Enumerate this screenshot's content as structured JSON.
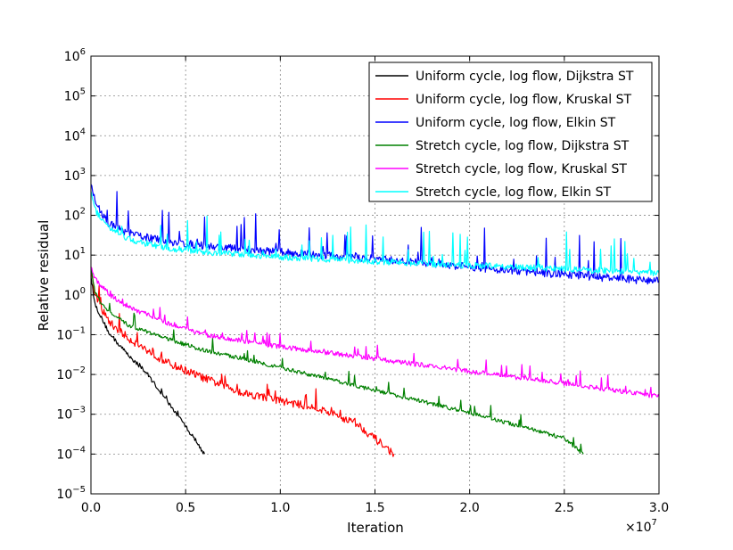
{
  "chart_data": {
    "type": "line",
    "xlabel": "Iteration",
    "ylabel": "Relative residual",
    "x_scale_factor": "×10",
    "x_scale_exponent": "7",
    "xlim": [
      0,
      3.0
    ],
    "ylim_exponent": [
      -5,
      6
    ],
    "yscale": "log",
    "grid": true,
    "legend_position": "top-right",
    "x_ticks": [
      "0.0",
      "0.5",
      "1.0",
      "1.5",
      "2.0",
      "2.5",
      "3.0"
    ],
    "y_ticks": [
      {
        "base": "10",
        "exp": "6"
      },
      {
        "base": "10",
        "exp": "5"
      },
      {
        "base": "10",
        "exp": "4"
      },
      {
        "base": "10",
        "exp": "3"
      },
      {
        "base": "10",
        "exp": "2"
      },
      {
        "base": "10",
        "exp": "1"
      },
      {
        "base": "10",
        "exp": "0"
      },
      {
        "base": "10",
        "exp": "−1"
      },
      {
        "base": "10",
        "exp": "−2"
      },
      {
        "base": "10",
        "exp": "−3"
      },
      {
        "base": "10",
        "exp": "−4"
      },
      {
        "base": "10",
        "exp": "−5"
      }
    ],
    "series": [
      {
        "name": "Uniform cycle, log flow, Dijkstra ST",
        "color": "#000000",
        "noise": 0.05,
        "spikes": 0.1,
        "points": [
          [
            0,
            3.0
          ],
          [
            0.02,
            0.6
          ],
          [
            0.05,
            0.3
          ],
          [
            0.1,
            0.1
          ],
          [
            0.2,
            0.03
          ],
          [
            0.3,
            0.01
          ],
          [
            0.4,
            0.0022
          ],
          [
            0.5,
            0.0005
          ],
          [
            0.6,
            0.0001
          ]
        ]
      },
      {
        "name": "Uniform cycle, log flow, Kruskal ST",
        "color": "#ff0000",
        "noise": 0.1,
        "spikes": 0.5,
        "points": [
          [
            0,
            5.0
          ],
          [
            0.02,
            1.0
          ],
          [
            0.05,
            0.5
          ],
          [
            0.1,
            0.2
          ],
          [
            0.2,
            0.08
          ],
          [
            0.4,
            0.02
          ],
          [
            0.6,
            0.008
          ],
          [
            0.8,
            0.0035
          ],
          [
            1.0,
            0.0022
          ],
          [
            1.2,
            0.0014
          ],
          [
            1.4,
            0.0006
          ],
          [
            1.6,
            0.0001
          ]
        ]
      },
      {
        "name": "Uniform cycle, log flow, Elkin ST",
        "color": "#0000ff",
        "noise": 0.1,
        "spikes": 1.0,
        "points": [
          [
            0,
            600
          ],
          [
            0.03,
            150
          ],
          [
            0.1,
            60
          ],
          [
            0.2,
            35
          ],
          [
            0.4,
            22
          ],
          [
            0.6,
            17
          ],
          [
            0.8,
            14
          ],
          [
            1.0,
            12
          ],
          [
            1.5,
            8
          ],
          [
            2.0,
            5
          ],
          [
            2.5,
            3.2
          ],
          [
            3.0,
            2.2
          ]
        ]
      },
      {
        "name": "Stretch cycle, log flow, Dijkstra ST",
        "color": "#008000",
        "noise": 0.05,
        "spikes": 0.35,
        "points": [
          [
            0,
            5.0
          ],
          [
            0.02,
            1.2
          ],
          [
            0.05,
            0.7
          ],
          [
            0.1,
            0.35
          ],
          [
            0.2,
            0.17
          ],
          [
            0.4,
            0.08
          ],
          [
            0.6,
            0.04
          ],
          [
            0.8,
            0.025
          ],
          [
            1.0,
            0.015
          ],
          [
            1.5,
            0.004
          ],
          [
            2.0,
            0.0011
          ],
          [
            2.5,
            0.00025
          ],
          [
            2.6,
            0.0001
          ]
        ]
      },
      {
        "name": "Stretch cycle, log flow, Kruskal ST",
        "color": "#ff00ff",
        "noise": 0.06,
        "spikes": 0.35,
        "points": [
          [
            0,
            5.0
          ],
          [
            0.02,
            2.5
          ],
          [
            0.1,
            1.0
          ],
          [
            0.2,
            0.5
          ],
          [
            0.4,
            0.2
          ],
          [
            0.6,
            0.1
          ],
          [
            0.8,
            0.07
          ],
          [
            1.0,
            0.05
          ],
          [
            1.5,
            0.025
          ],
          [
            2.0,
            0.012
          ],
          [
            2.5,
            0.006
          ],
          [
            3.0,
            0.0028
          ]
        ]
      },
      {
        "name": "Stretch cycle, log flow, Elkin ST",
        "color": "#00ffff",
        "noise": 0.08,
        "spikes": 0.9,
        "points": [
          [
            0,
            400
          ],
          [
            0.03,
            120
          ],
          [
            0.1,
            45
          ],
          [
            0.2,
            25
          ],
          [
            0.4,
            15
          ],
          [
            0.6,
            12
          ],
          [
            0.8,
            10
          ],
          [
            1.0,
            9
          ],
          [
            1.5,
            7
          ],
          [
            2.0,
            5.5
          ],
          [
            2.5,
            4.5
          ],
          [
            3.0,
            3.5
          ]
        ]
      }
    ]
  }
}
